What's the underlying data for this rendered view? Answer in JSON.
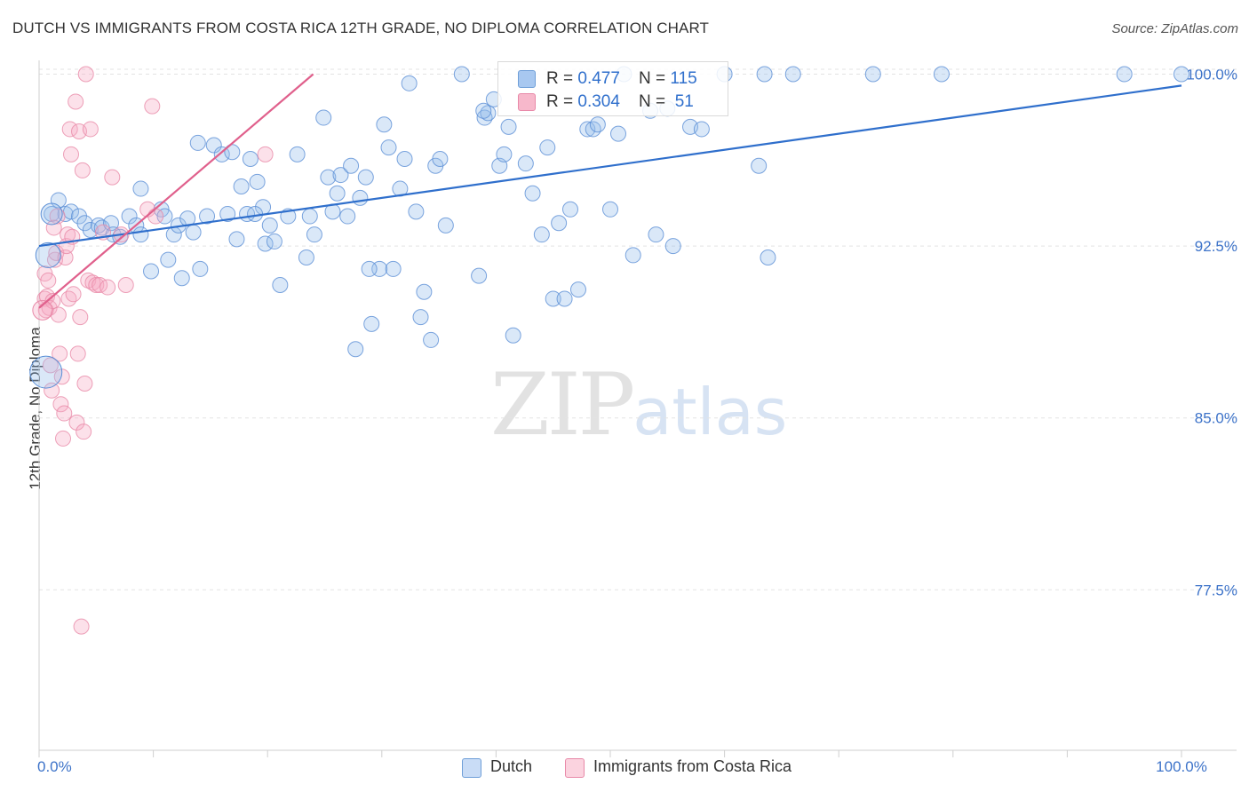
{
  "header": {
    "title": "DUTCH VS IMMIGRANTS FROM COSTA RICA 12TH GRADE, NO DIPLOMA CORRELATION CHART",
    "source": "Source: ZipAtlas.com"
  },
  "watermark": {
    "zip": "ZIP",
    "atlas": "atlas"
  },
  "stats": [
    {
      "r_label": "R = ",
      "r_value": "0.477",
      "n_label": "N = ",
      "n_value": "115",
      "color": "#a8c8f0",
      "border": "#6f9fd8"
    },
    {
      "r_label": "R = ",
      "r_value": "0.304",
      "n_label": "N = ",
      "n_value": " 51",
      "color": "#f7b8cb",
      "border": "#e889a8"
    }
  ],
  "legend": [
    {
      "label": "Dutch",
      "color": "#c9dcf6",
      "border": "#6f9fd8"
    },
    {
      "label": "Immigrants from Costa Rica",
      "color": "#fbd3df",
      "border": "#e889a8"
    }
  ],
  "colors": {
    "dutch_fill": "rgba(150,190,235,0.35)",
    "dutch_stroke": "#5b8fd6",
    "dutch_line": "#2f6fcc",
    "cr_fill": "rgba(245,170,195,0.35)",
    "cr_stroke": "#e889a8",
    "cr_line": "#e0608c",
    "grid": "#e3e3e3",
    "tick_label": "#3d73c9"
  },
  "chart_data": {
    "type": "scatter",
    "title": "DUTCH VS IMMIGRANTS FROM COSTA RICA 12TH GRADE, NO DIPLOMA CORRELATION CHART",
    "xlabel": "",
    "ylabel": "12th Grade, No Diploma",
    "xlim": [
      0,
      100
    ],
    "ylim": [
      70.5,
      100.6
    ],
    "x_tick_labels": [
      {
        "value": 0,
        "label": "0.0%"
      },
      {
        "value": 100,
        "label": "100.0%"
      }
    ],
    "y_ticks": [
      {
        "value": 100.0,
        "label": "100.0%"
      },
      {
        "value": 92.5,
        "label": "92.5%"
      },
      {
        "value": 85.0,
        "label": "85.0%"
      },
      {
        "value": 77.5,
        "label": "77.5%"
      }
    ],
    "grid": true,
    "legend_position": "bottom",
    "series": [
      {
        "name": "Dutch",
        "trend": {
          "x": [
            0,
            100
          ],
          "y": [
            92.5,
            99.5
          ]
        },
        "points": [
          [
            1.1,
            93.9
          ],
          [
            1.7,
            94.5
          ],
          [
            2.3,
            93.9
          ],
          [
            2.8,
            94.0
          ],
          [
            3.5,
            93.8
          ],
          [
            4,
            93.5
          ],
          [
            4.5,
            93.2
          ],
          [
            5.2,
            93.4
          ],
          [
            5.5,
            93.3
          ],
          [
            6.3,
            93.5
          ],
          [
            6.5,
            93.0
          ],
          [
            7.1,
            92.9
          ],
          [
            7.9,
            93.8
          ],
          [
            8.5,
            93.4
          ],
          [
            8.9,
            95.0
          ],
          [
            9.8,
            91.4
          ],
          [
            10.7,
            94.1
          ],
          [
            11.0,
            93.8
          ],
          [
            11.3,
            91.9
          ],
          [
            11.8,
            93.0
          ],
          [
            12.2,
            93.4
          ],
          [
            12.5,
            91.1
          ],
          [
            13,
            93.7
          ],
          [
            13.5,
            93.1
          ],
          [
            14.1,
            91.5
          ],
          [
            14.7,
            93.8
          ],
          [
            15.3,
            96.9
          ],
          [
            16.0,
            96.5
          ],
          [
            16.5,
            93.9
          ],
          [
            16.9,
            96.6
          ],
          [
            17.3,
            92.8
          ],
          [
            17.7,
            95.1
          ],
          [
            18.2,
            93.9
          ],
          [
            18.5,
            96.3
          ],
          [
            19.1,
            95.3
          ],
          [
            19.6,
            94.2
          ],
          [
            19.8,
            92.6
          ],
          [
            20.2,
            93.4
          ],
          [
            20.6,
            92.7
          ],
          [
            21.1,
            90.8
          ],
          [
            21.8,
            93.8
          ],
          [
            22.6,
            96.5
          ],
          [
            23.4,
            92.0
          ],
          [
            23.7,
            93.8
          ],
          [
            24.1,
            93.0
          ],
          [
            24.9,
            98.1
          ],
          [
            25.3,
            95.5
          ],
          [
            25.7,
            94.0
          ],
          [
            26.1,
            94.8
          ],
          [
            26.4,
            95.6
          ],
          [
            27.0,
            93.8
          ],
          [
            27.3,
            96.0
          ],
          [
            27.7,
            88.0
          ],
          [
            28.1,
            94.6
          ],
          [
            28.6,
            95.5
          ],
          [
            29.1,
            89.1
          ],
          [
            29.8,
            91.5
          ],
          [
            30.2,
            97.8
          ],
          [
            30.6,
            96.8
          ],
          [
            31.0,
            91.5
          ],
          [
            31.6,
            95.0
          ],
          [
            32.0,
            96.3
          ],
          [
            32.4,
            99.6
          ],
          [
            33.0,
            94.0
          ],
          [
            33.4,
            89.4
          ],
          [
            33.7,
            90.5
          ],
          [
            34.3,
            88.4
          ],
          [
            34.7,
            96.0
          ],
          [
            35.1,
            96.3
          ],
          [
            35.6,
            93.4
          ],
          [
            37.0,
            100.0
          ],
          [
            38.5,
            91.2
          ],
          [
            39.0,
            98.1
          ],
          [
            39.3,
            98.3
          ],
          [
            39.8,
            98.9
          ],
          [
            40.3,
            96.0
          ],
          [
            40.7,
            96.5
          ],
          [
            41.1,
            97.7
          ],
          [
            41.5,
            88.6
          ],
          [
            42.6,
            96.1
          ],
          [
            43.2,
            94.8
          ],
          [
            44.0,
            93.0
          ],
          [
            44.5,
            96.8
          ],
          [
            45.0,
            90.2
          ],
          [
            45.5,
            93.5
          ],
          [
            46.0,
            90.2
          ],
          [
            46.5,
            94.1
          ],
          [
            47.2,
            90.6
          ],
          [
            48.0,
            97.6
          ],
          [
            48.5,
            97.6
          ],
          [
            50.0,
            94.1
          ],
          [
            50.7,
            97.4
          ],
          [
            51.2,
            100.0
          ],
          [
            52.0,
            92.1
          ],
          [
            53.5,
            98.4
          ],
          [
            54.0,
            93.0
          ],
          [
            55.0,
            98.5
          ],
          [
            55.5,
            92.5
          ],
          [
            57.0,
            97.7
          ],
          [
            58.0,
            97.6
          ],
          [
            60.0,
            100.0
          ],
          [
            63.0,
            96.0
          ],
          [
            63.5,
            100.0
          ],
          [
            63.8,
            92.0
          ],
          [
            66.0,
            100.0
          ],
          [
            73.0,
            100.0
          ],
          [
            79.0,
            100.0
          ],
          [
            95.0,
            100.0
          ],
          [
            100.0,
            100.0
          ],
          [
            8.9,
            93.0
          ],
          [
            13.9,
            97.0
          ],
          [
            18.9,
            93.9
          ],
          [
            28.9,
            91.5
          ],
          [
            38.9,
            98.4
          ],
          [
            48.9,
            97.8
          ]
        ]
      },
      {
        "name": "Immigrants from Costa Rica",
        "trend": {
          "x": [
            0,
            24.0
          ],
          "y": [
            89.8,
            100.0
          ]
        },
        "points": [
          [
            0.5,
            91.3
          ],
          [
            0.5,
            90.2
          ],
          [
            0.6,
            89.7
          ],
          [
            0.7,
            90.3
          ],
          [
            0.8,
            91.0
          ],
          [
            0.9,
            89.8
          ],
          [
            1.0,
            87.3
          ],
          [
            1.1,
            86.2
          ],
          [
            1.2,
            90.1
          ],
          [
            1.4,
            91.9
          ],
          [
            1.5,
            92.2
          ],
          [
            1.6,
            93.8
          ],
          [
            1.7,
            89.5
          ],
          [
            1.8,
            87.8
          ],
          [
            1.9,
            85.6
          ],
          [
            2.0,
            86.8
          ],
          [
            2.1,
            84.1
          ],
          [
            2.2,
            85.2
          ],
          [
            2.3,
            92.0
          ],
          [
            2.4,
            92.5
          ],
          [
            2.5,
            93.0
          ],
          [
            2.6,
            90.2
          ],
          [
            2.7,
            97.6
          ],
          [
            2.8,
            96.5
          ],
          [
            2.9,
            92.9
          ],
          [
            3.0,
            90.4
          ],
          [
            3.2,
            98.8
          ],
          [
            3.3,
            84.8
          ],
          [
            3.4,
            87.8
          ],
          [
            3.5,
            97.5
          ],
          [
            3.6,
            89.4
          ],
          [
            3.8,
            95.8
          ],
          [
            3.9,
            84.4
          ],
          [
            4.0,
            86.5
          ],
          [
            4.1,
            100.0
          ],
          [
            4.3,
            91.0
          ],
          [
            4.5,
            97.6
          ],
          [
            4.7,
            90.9
          ],
          [
            5.0,
            90.8
          ],
          [
            5.3,
            90.8
          ],
          [
            5.6,
            93.1
          ],
          [
            6.0,
            90.7
          ],
          [
            6.4,
            95.5
          ],
          [
            7.2,
            93.0
          ],
          [
            7.6,
            90.8
          ],
          [
            9.5,
            94.1
          ],
          [
            9.9,
            98.6
          ],
          [
            10.2,
            93.8
          ],
          [
            19.8,
            96.5
          ],
          [
            3.7,
            75.9
          ],
          [
            1.3,
            93.3
          ]
        ]
      }
    ]
  }
}
